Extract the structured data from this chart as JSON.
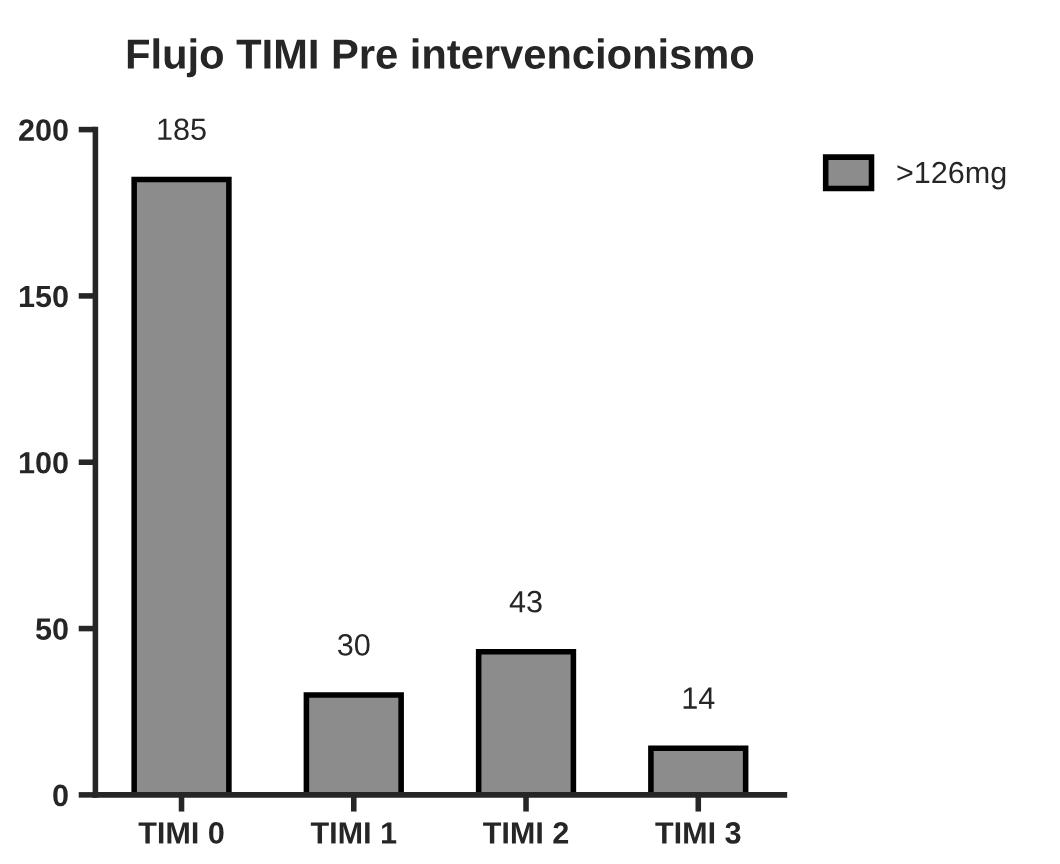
{
  "chart_data": {
    "type": "bar",
    "title": "Flujo TIMI Pre intervencionismo",
    "categories": [
      "TIMI 0",
      "TIMI 1",
      "TIMI 2",
      "TIMI 3"
    ],
    "series": [
      {
        "name": ">126mg",
        "color": "#8c8c8c",
        "values": [
          185,
          30,
          43,
          14
        ]
      }
    ],
    "ylim": [
      0,
      200
    ],
    "yticks": [
      0,
      50,
      100,
      150,
      200
    ],
    "data_labels": true,
    "legend": "top right",
    "grid": false
  }
}
